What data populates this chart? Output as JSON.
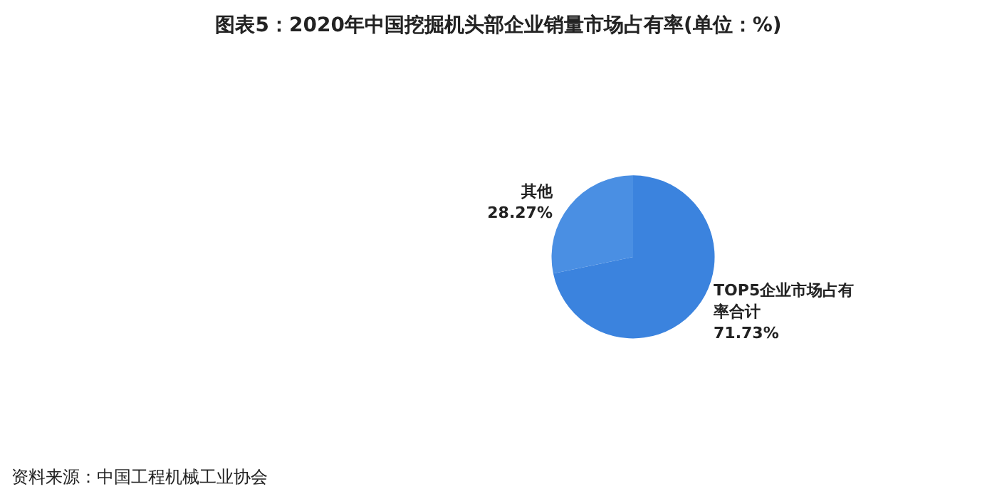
{
  "chart_data": {
    "type": "pie",
    "title": "图表5：2020年中国挖掘机头部企业销量市场占有率(单位：%)",
    "categories": [
      "其他",
      "TOP5企业市场占有率合计"
    ],
    "values": [
      28.27,
      71.73
    ],
    "colors": [
      "#4a8fe3",
      "#3b83de"
    ],
    "value_labels": [
      "28.27%",
      "71.73%"
    ],
    "annotations": [
      "资料来源：中国工程机械工业协会"
    ]
  }
}
